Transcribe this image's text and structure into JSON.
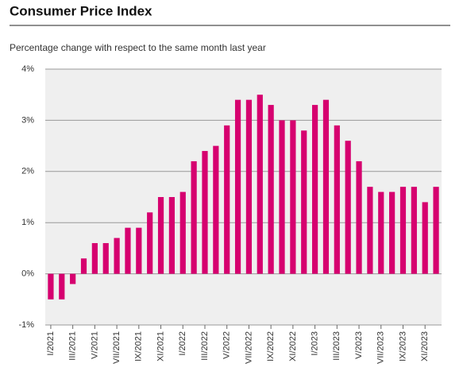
{
  "chart_data": {
    "type": "bar",
    "title": "Consumer Price Index",
    "subtitle": "Percentage change with respect to the same month last year",
    "categories": [
      "I/2021",
      null,
      "III/2021",
      null,
      "V/2021",
      null,
      "VII/2021",
      null,
      "IX/2021",
      null,
      "XI/2021",
      null,
      "I/2022",
      null,
      "III/2022",
      null,
      "V/2022",
      null,
      "VII/2022",
      null,
      "IX/2022",
      null,
      "XI/2022",
      null,
      "I/2023",
      null,
      "III/2023",
      null,
      "V/2023",
      null,
      "VII/2023",
      null,
      "IX/2023",
      null,
      "XI/2023",
      null
    ],
    "values": [
      -0.5,
      -0.5,
      -0.2,
      0.3,
      0.6,
      0.6,
      0.7,
      0.9,
      0.9,
      1.2,
      1.5,
      1.5,
      1.6,
      2.2,
      2.4,
      2.5,
      2.9,
      3.4,
      3.4,
      3.5,
      3.3,
      3.0,
      3.0,
      2.8,
      3.3,
      3.4,
      2.9,
      2.6,
      2.2,
      1.7,
      1.6,
      1.6,
      1.7,
      1.7,
      1.4,
      1.7
    ],
    "color": "#d6006f",
    "ylim": [
      -1,
      4
    ],
    "yticks": [
      {
        "value": -1,
        "label": "-1%"
      },
      {
        "value": 0,
        "label": "0%"
      },
      {
        "value": 1,
        "label": "1%"
      },
      {
        "value": 2,
        "label": "2%"
      },
      {
        "value": 3,
        "label": "3%"
      },
      {
        "value": 4,
        "label": "4%"
      }
    ],
    "grid": true
  }
}
